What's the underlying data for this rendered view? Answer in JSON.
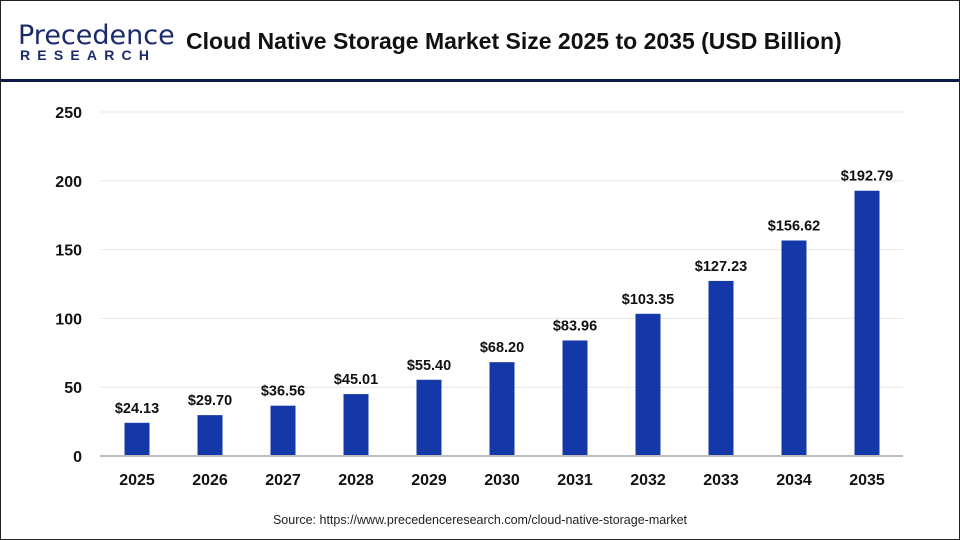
{
  "logo": {
    "main": "Precedence",
    "sub": "RESEARCH"
  },
  "chart_data": {
    "type": "bar",
    "title": "Cloud Native Storage Market Size 2025 to 2035 (USD Billion)",
    "categories": [
      "2025",
      "2026",
      "2027",
      "2028",
      "2029",
      "2030",
      "2031",
      "2032",
      "2033",
      "2034",
      "2035"
    ],
    "values": [
      24.13,
      29.7,
      36.56,
      45.01,
      55.4,
      68.2,
      83.96,
      103.35,
      127.23,
      156.62,
      192.79
    ],
    "data_labels": [
      "$24.13",
      "$29.70",
      "$36.56",
      "$45.01",
      "$55.40",
      "$68.20",
      "$83.96",
      "$103.35",
      "$127.23",
      "$156.62",
      "$192.79"
    ],
    "yticks": [
      0,
      50,
      100,
      150,
      200,
      250
    ],
    "ylim": [
      0,
      250
    ],
    "grid": true,
    "bar_color": "#1538a8"
  },
  "source": "Source: https://www.precedenceresearch.com/cloud-native-storage-market"
}
